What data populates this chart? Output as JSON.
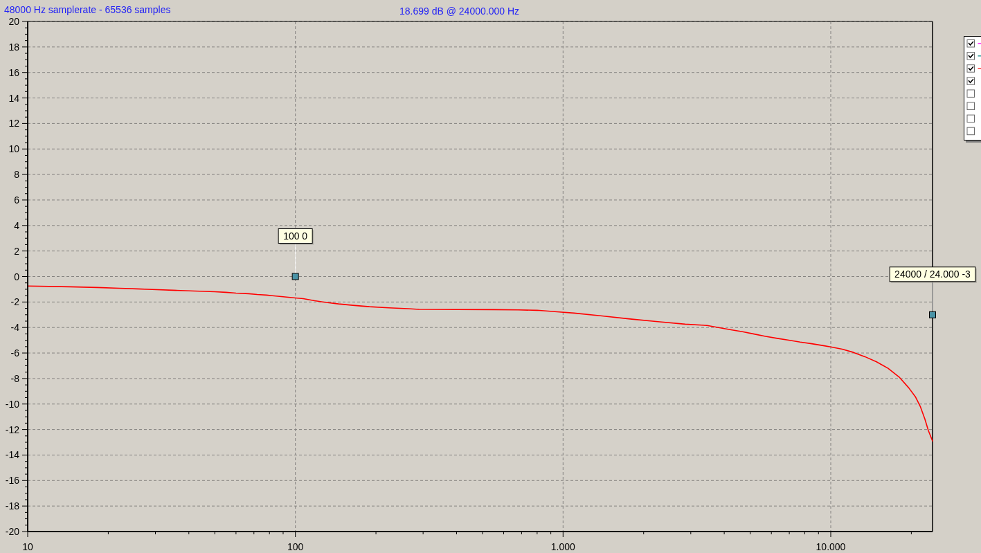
{
  "chart_data": {
    "type": "line",
    "title": "48000 Hz samplerate - 65536 samples",
    "subtitle": "18.699 dB @ 24000.000 Hz",
    "log": "x",
    "xlim": [
      10,
      24000
    ],
    "ylim": [
      -20,
      20
    ],
    "xticks": [
      10,
      {
        "value": 20,
        "label": null
      },
      {
        "value": 30,
        "label": null
      },
      {
        "value": 40,
        "label": null
      },
      {
        "value": 50,
        "label": null
      },
      {
        "value": 60,
        "label": null
      },
      {
        "value": 70,
        "label": null
      },
      {
        "value": 80,
        "label": null
      },
      {
        "value": 90,
        "label": null
      },
      100,
      {
        "value": 200,
        "label": null
      },
      {
        "value": 300,
        "label": null
      },
      {
        "value": 400,
        "label": null
      },
      {
        "value": 500,
        "label": null
      },
      {
        "value": 600,
        "label": null
      },
      {
        "value": 700,
        "label": null
      },
      {
        "value": 800,
        "label": null
      },
      {
        "value": 900,
        "label": null
      },
      {
        "value": 1000,
        "label": "1.000"
      },
      {
        "value": 2000,
        "label": null
      },
      {
        "value": 3000,
        "label": null
      },
      {
        "value": 4000,
        "label": null
      },
      {
        "value": 5000,
        "label": null
      },
      {
        "value": 6000,
        "label": null
      },
      {
        "value": 7000,
        "label": null
      },
      {
        "value": 8000,
        "label": null
      },
      {
        "value": 9000,
        "label": null
      },
      {
        "value": 10000,
        "label": "10.000"
      },
      {
        "value": 20000,
        "label": null
      }
    ],
    "yticks": [
      -20,
      {
        "value": -19.5,
        "label": null
      },
      {
        "value": -19,
        "label": null
      },
      {
        "value": -18.5,
        "label": null
      },
      -18,
      {
        "value": -17.5,
        "label": null
      },
      {
        "value": -17,
        "label": null
      },
      {
        "value": -16.5,
        "label": null
      },
      -16,
      {
        "value": -15.5,
        "label": null
      },
      {
        "value": -15,
        "label": null
      },
      {
        "value": -14.5,
        "label": null
      },
      -14,
      {
        "value": -13.5,
        "label": null
      },
      {
        "value": -13,
        "label": null
      },
      {
        "value": -12.5,
        "label": null
      },
      -12,
      {
        "value": -11.5,
        "label": null
      },
      {
        "value": -11,
        "label": null
      },
      {
        "value": -10.5,
        "label": null
      },
      -10,
      {
        "value": -9.5,
        "label": null
      },
      {
        "value": -9,
        "label": null
      },
      {
        "value": -8.5,
        "label": null
      },
      -8,
      {
        "value": -7.5,
        "label": null
      },
      {
        "value": -7,
        "label": null
      },
      {
        "value": -6.5,
        "label": null
      },
      -6,
      {
        "value": -5.5,
        "label": null
      },
      {
        "value": -5,
        "label": null
      },
      {
        "value": -4.5,
        "label": null
      },
      -4,
      {
        "value": -3.5,
        "label": null
      },
      {
        "value": -3,
        "label": null
      },
      {
        "value": -2.5,
        "label": null
      },
      -2,
      {
        "value": -1.5,
        "label": null
      },
      {
        "value": -1,
        "label": null
      },
      {
        "value": -0.5,
        "label": null
      },
      0,
      {
        "value": 0.5,
        "label": null
      },
      {
        "value": 1,
        "label": null
      },
      {
        "value": 1.5,
        "label": null
      },
      2,
      {
        "value": 2.5,
        "label": null
      },
      {
        "value": 3,
        "label": null
      },
      {
        "value": 3.5,
        "label": null
      },
      4,
      {
        "value": 4.5,
        "label": null
      },
      {
        "value": 5,
        "label": null
      },
      {
        "value": 5.5,
        "label": null
      },
      6,
      {
        "value": 6.5,
        "label": null
      },
      {
        "value": 7,
        "label": null
      },
      {
        "value": 7.5,
        "label": null
      },
      8,
      {
        "value": 8.5,
        "label": null
      },
      {
        "value": 9,
        "label": null
      },
      {
        "value": 9.5,
        "label": null
      },
      10,
      {
        "value": 10.5,
        "label": null
      },
      {
        "value": 11,
        "label": null
      },
      {
        "value": 11.5,
        "label": null
      },
      12,
      {
        "value": 12.5,
        "label": null
      },
      {
        "value": 13,
        "label": null
      },
      {
        "value": 13.5,
        "label": null
      },
      14,
      {
        "value": 14.5,
        "label": null
      },
      {
        "value": 15,
        "label": null
      },
      {
        "value": 15.5,
        "label": null
      },
      16,
      {
        "value": 16.5,
        "label": null
      },
      {
        "value": 17,
        "label": null
      },
      {
        "value": 17.5,
        "label": null
      },
      18,
      {
        "value": 18.5,
        "label": null
      },
      {
        "value": 19,
        "label": null
      },
      {
        "value": 19.5,
        "label": null
      },
      20
    ],
    "grid": true,
    "series": [
      {
        "color": "#ff0000",
        "x": [
          10,
          14.4,
          18.2,
          22,
          25.6,
          29.2,
          35,
          42,
          50,
          55,
          60,
          67,
          72,
          78,
          82,
          90,
          100,
          107,
          118,
          129,
          145,
          164,
          189,
          223,
          264,
          290,
          400,
          550,
          680,
          800,
          880,
          950,
          1100,
          1400,
          1780,
          2260,
          2860,
          3450,
          3840,
          4240,
          4680,
          5170,
          5710,
          6310,
          6970,
          7690,
          8490,
          9380,
          10000,
          11040,
          12150,
          13420,
          14820,
          16370,
          18080,
          19560,
          20750,
          21590,
          22470,
          23150,
          24000
        ],
        "values": [
          -0.75,
          -0.81,
          -0.86,
          -0.92,
          -0.97,
          -1.02,
          -1.08,
          -1.14,
          -1.19,
          -1.24,
          -1.3,
          -1.35,
          -1.41,
          -1.46,
          -1.51,
          -1.59,
          -1.68,
          -1.74,
          -1.9,
          -2.02,
          -2.15,
          -2.26,
          -2.37,
          -2.46,
          -2.52,
          -2.58,
          -2.59,
          -2.6,
          -2.62,
          -2.65,
          -2.71,
          -2.77,
          -2.87,
          -3.09,
          -3.33,
          -3.54,
          -3.74,
          -3.84,
          -4.02,
          -4.18,
          -4.33,
          -4.51,
          -4.69,
          -4.85,
          -4.99,
          -5.14,
          -5.27,
          -5.42,
          -5.52,
          -5.7,
          -5.95,
          -6.29,
          -6.69,
          -7.2,
          -7.92,
          -8.73,
          -9.46,
          -10.18,
          -11.18,
          -12.08,
          -12.9
        ]
      },
      {
        "type": "scatter",
        "color": "#4a93a6",
        "marker": "square",
        "x": [
          100,
          24000
        ],
        "values": [
          0,
          -3
        ],
        "value_labels": [
          "100 0",
          "24000 / 24.000 -3"
        ]
      }
    ]
  }
}
